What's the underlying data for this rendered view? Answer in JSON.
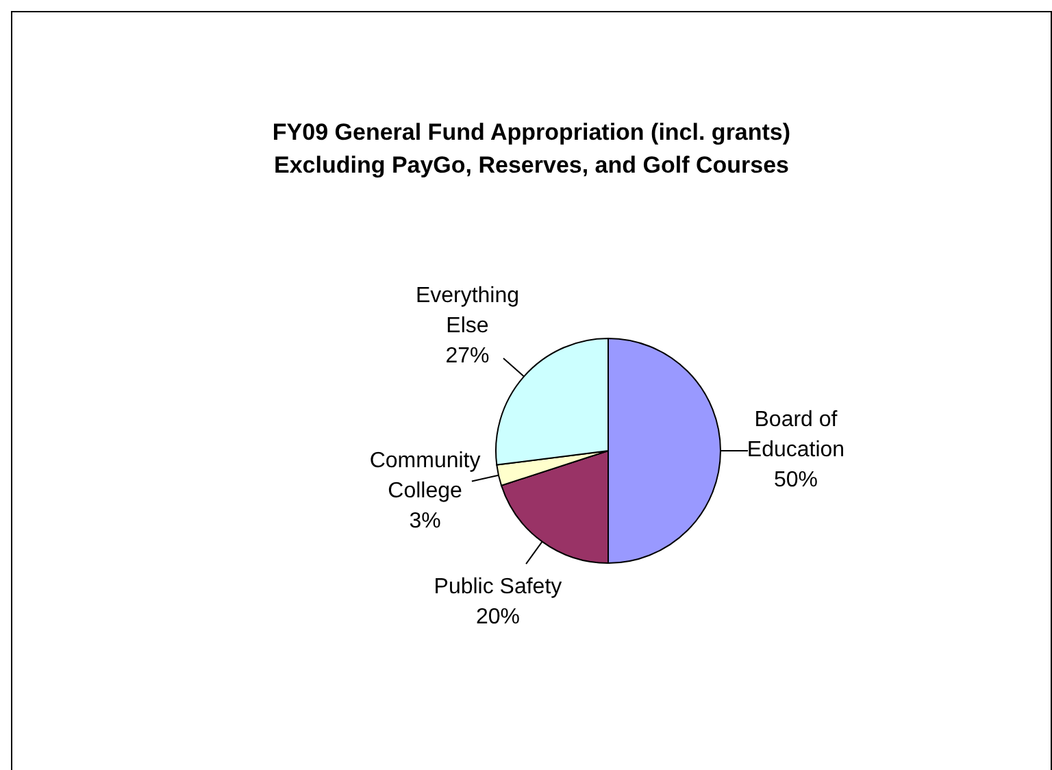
{
  "chart_data": {
    "type": "pie",
    "title": "FY09 General Fund Appropriation (incl. grants)",
    "subtitle": "Excluding PayGo, Reserves, and Golf Courses",
    "categories": [
      "Board of Education",
      "Public Safety",
      "Community College",
      "Everything Else"
    ],
    "values": [
      50,
      20,
      3,
      27
    ],
    "value_labels": [
      "50%",
      "20%",
      "3%",
      "27%"
    ],
    "colors": [
      "#9999ff",
      "#993366",
      "#ffffcc",
      "#ccffff"
    ],
    "legend": false
  }
}
